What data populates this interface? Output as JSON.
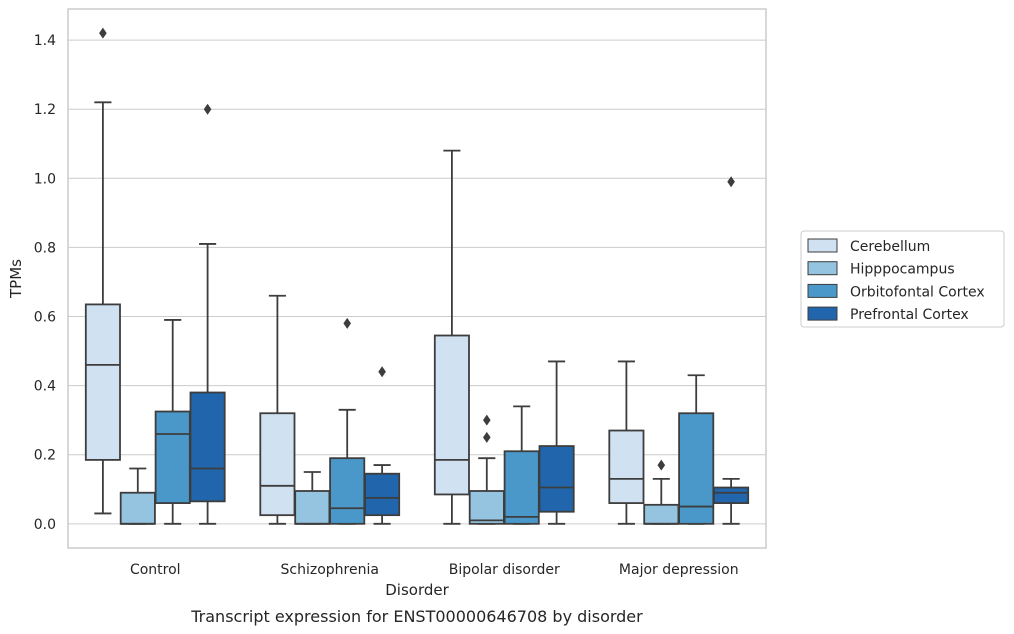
{
  "chart_data": {
    "type": "box",
    "caption": "Transcript expression for ENST00000646708 by disorder",
    "xlabel": "Disorder",
    "ylabel": "TPMs",
    "ylim": [
      -0.07,
      1.49
    ],
    "yticks": [
      0.0,
      0.2,
      0.4,
      0.6,
      0.8,
      1.0,
      1.2,
      1.4
    ],
    "ytick_labels": [
      "0.0",
      "0.2",
      "0.4",
      "0.6",
      "0.8",
      "1.0",
      "1.2",
      "1.4"
    ],
    "grid": true,
    "legend_position": "right",
    "categories": [
      "Control",
      "Schizophrenia",
      "Bipolar disorder",
      "Major depression"
    ],
    "series": [
      {
        "name": "Cerebellum",
        "color": "#d0e1f2",
        "boxes": [
          {
            "whisker_low": 0.03,
            "q1": 0.185,
            "median": 0.46,
            "q3": 0.635,
            "whisker_high": 1.22,
            "outliers": [
              1.42
            ]
          },
          {
            "whisker_low": 0.0,
            "q1": 0.025,
            "median": 0.11,
            "q3": 0.32,
            "whisker_high": 0.66,
            "outliers": []
          },
          {
            "whisker_low": 0.0,
            "q1": 0.085,
            "median": 0.185,
            "q3": 0.545,
            "whisker_high": 1.08,
            "outliers": []
          },
          {
            "whisker_low": 0.0,
            "q1": 0.06,
            "median": 0.13,
            "q3": 0.27,
            "whisker_high": 0.47,
            "outliers": []
          }
        ]
      },
      {
        "name": "Hipppocampus",
        "color": "#94c4df",
        "boxes": [
          {
            "whisker_low": 0.0,
            "q1": 0.0,
            "median": 0.0,
            "q3": 0.09,
            "whisker_high": 0.16,
            "outliers": []
          },
          {
            "whisker_low": 0.0,
            "q1": 0.0,
            "median": 0.0,
            "q3": 0.095,
            "whisker_high": 0.15,
            "outliers": []
          },
          {
            "whisker_low": 0.0,
            "q1": 0.0,
            "median": 0.01,
            "q3": 0.095,
            "whisker_high": 0.19,
            "outliers": [
              0.25,
              0.3
            ]
          },
          {
            "whisker_low": 0.0,
            "q1": 0.0,
            "median": 0.0,
            "q3": 0.055,
            "whisker_high": 0.13,
            "outliers": [
              0.17
            ]
          }
        ]
      },
      {
        "name": "Orbitofontal Cortex",
        "color": "#4a98c9",
        "boxes": [
          {
            "whisker_low": 0.0,
            "q1": 0.06,
            "median": 0.26,
            "q3": 0.325,
            "whisker_high": 0.59,
            "outliers": []
          },
          {
            "whisker_low": 0.0,
            "q1": 0.0,
            "median": 0.045,
            "q3": 0.19,
            "whisker_high": 0.33,
            "outliers": [
              0.58
            ]
          },
          {
            "whisker_low": 0.0,
            "q1": 0.0,
            "median": 0.02,
            "q3": 0.21,
            "whisker_high": 0.34,
            "outliers": []
          },
          {
            "whisker_low": 0.0,
            "q1": 0.0,
            "median": 0.05,
            "q3": 0.32,
            "whisker_high": 0.43,
            "outliers": []
          }
        ]
      },
      {
        "name": "Prefrontal Cortex",
        "color": "#2166ac",
        "boxes": [
          {
            "whisker_low": 0.0,
            "q1": 0.065,
            "median": 0.16,
            "q3": 0.38,
            "whisker_high": 0.81,
            "outliers": [
              1.2
            ]
          },
          {
            "whisker_low": 0.0,
            "q1": 0.025,
            "median": 0.075,
            "q3": 0.145,
            "whisker_high": 0.17,
            "outliers": [
              0.44
            ]
          },
          {
            "whisker_low": 0.0,
            "q1": 0.035,
            "median": 0.105,
            "q3": 0.225,
            "whisker_high": 0.47,
            "outliers": []
          },
          {
            "whisker_low": 0.0,
            "q1": 0.06,
            "median": 0.09,
            "q3": 0.105,
            "whisker_high": 0.13,
            "outliers": [
              0.99
            ]
          }
        ]
      }
    ]
  }
}
